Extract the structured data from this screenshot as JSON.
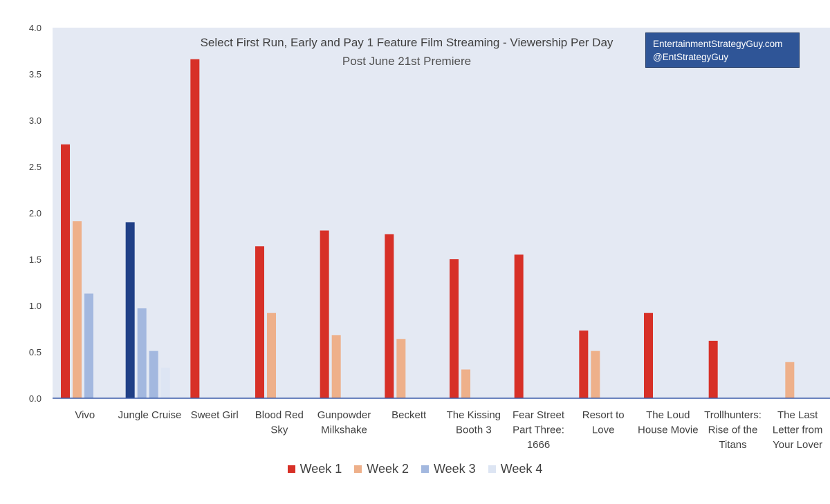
{
  "chart_data": {
    "type": "bar",
    "title": "Select First Run, Early and Pay 1 Feature Film Streaming - Viewership Per Day",
    "subtitle": "Post June 21st Premiere",
    "credit_lines": [
      "EntertainmentStrategyGuy.com",
      "@EntStrategyGuy"
    ],
    "categories": [
      [
        "Vivo"
      ],
      [
        "Jungle Cruise"
      ],
      [
        "Sweet Girl"
      ],
      [
        "Blood Red",
        "Sky"
      ],
      [
        "Gunpowder",
        "Milkshake"
      ],
      [
        "Beckett"
      ],
      [
        "The Kissing",
        "Booth 3"
      ],
      [
        "Fear Street",
        "Part Three:",
        "1666"
      ],
      [
        "Resort to",
        "Love"
      ],
      [
        "The Loud",
        "House Movie"
      ],
      [
        "Trollhunters:",
        "Rise of the",
        "Titans"
      ],
      [
        "The Last",
        "Letter from",
        "Your Lover"
      ]
    ],
    "series": [
      {
        "name": "Week 1",
        "color": "#d73027",
        "values": [
          2.74,
          1.9,
          3.66,
          1.64,
          1.81,
          1.77,
          1.5,
          1.55,
          0.73,
          0.92,
          0.62,
          null
        ]
      },
      {
        "name": "Week 2",
        "color": "#eeb08a",
        "values": [
          1.91,
          0.97,
          null,
          0.92,
          0.68,
          0.64,
          0.31,
          null,
          0.51,
          null,
          null,
          0.39
        ]
      },
      {
        "name": "Week 3",
        "color": "#a3b8df",
        "values": [
          1.13,
          0.51,
          null,
          null,
          null,
          null,
          null,
          null,
          null,
          null,
          null,
          null
        ]
      },
      {
        "name": "Week 4",
        "color": "#dde5f3",
        "values": [
          null,
          0.33,
          null,
          null,
          null,
          null,
          null,
          null,
          null,
          null,
          null,
          null
        ]
      }
    ],
    "highlight": {
      "category_index": 1,
      "colors": [
        "#1f3f86",
        "#a3b8df",
        "#a3b8df",
        "#dde5f3"
      ]
    },
    "yticks": [
      "0.0",
      "0.5",
      "1.0",
      "1.5",
      "2.0",
      "2.5",
      "3.0",
      "3.5",
      "4.0"
    ],
    "ylim": [
      0,
      4.0
    ],
    "grid": false,
    "legend_position": "bottom",
    "colors": {
      "plot_background": "#e4e9f3",
      "axis_line": "#3a5ba9",
      "text": "#404040"
    }
  }
}
